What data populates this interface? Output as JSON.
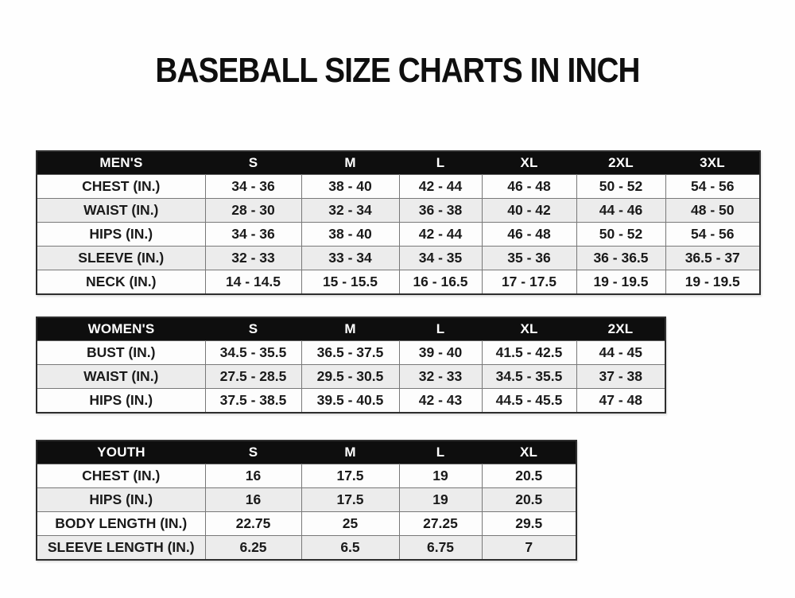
{
  "page": {
    "title": "BASEBALL SIZE CHARTS IN INCH"
  },
  "colors": {
    "header_bg": "#0e0e0e",
    "header_text": "#ffffff",
    "row_bg": "#fdfdfd",
    "row_alt_bg": "#ececec",
    "grid_line": "#787878",
    "outer_border": "#2e2e2e",
    "text": "#1a1a1a",
    "background": "#fefefe"
  },
  "chart_data": [
    {
      "type": "table",
      "title": "MEN'S",
      "columns": [
        "S",
        "M",
        "L",
        "XL",
        "2XL",
        "3XL"
      ],
      "rows": [
        {
          "label": "CHEST (IN.)",
          "values": [
            "34 - 36",
            "38 - 40",
            "42 - 44",
            "46 - 48",
            "50 - 52",
            "54 - 56"
          ]
        },
        {
          "label": "WAIST (IN.)",
          "values": [
            "28 - 30",
            "32 - 34",
            "36 - 38",
            "40 - 42",
            "44 - 46",
            "48 - 50"
          ]
        },
        {
          "label": "HIPS (IN.)",
          "values": [
            "34 - 36",
            "38 - 40",
            "42 - 44",
            "46 - 48",
            "50 - 52",
            "54 - 56"
          ]
        },
        {
          "label": "SLEEVE (IN.)",
          "values": [
            "32 - 33",
            "33 - 34",
            "34 - 35",
            "35 - 36",
            "36 - 36.5",
            "36.5 - 37"
          ]
        },
        {
          "label": "NECK (IN.)",
          "values": [
            "14 - 14.5",
            "15 - 15.5",
            "16 - 16.5",
            "17 - 17.5",
            "19 - 19.5",
            "19 - 19.5"
          ]
        }
      ]
    },
    {
      "type": "table",
      "title": "WOMEN'S",
      "columns": [
        "S",
        "M",
        "L",
        "XL",
        "2XL"
      ],
      "rows": [
        {
          "label": "BUST (IN.)",
          "values": [
            "34.5 - 35.5",
            "36.5 - 37.5",
            "39 - 40",
            "41.5 - 42.5",
            "44 - 45"
          ]
        },
        {
          "label": "WAIST (IN.)",
          "values": [
            "27.5 - 28.5",
            "29.5 - 30.5",
            "32 - 33",
            "34.5 - 35.5",
            "37 - 38"
          ]
        },
        {
          "label": "HIPS (IN.)",
          "values": [
            "37.5 - 38.5",
            "39.5 - 40.5",
            "42 - 43",
            "44.5 - 45.5",
            "47 - 48"
          ]
        }
      ]
    },
    {
      "type": "table",
      "title": "YOUTH",
      "columns": [
        "S",
        "M",
        "L",
        "XL"
      ],
      "rows": [
        {
          "label": "CHEST (IN.)",
          "values": [
            "16",
            "17.5",
            "19",
            "20.5"
          ]
        },
        {
          "label": "HIPS (IN.)",
          "values": [
            "16",
            "17.5",
            "19",
            "20.5"
          ]
        },
        {
          "label": "BODY LENGTH (IN.)",
          "values": [
            "22.75",
            "25",
            "27.25",
            "29.5"
          ]
        },
        {
          "label": "SLEEVE LENGTH (IN.)",
          "values": [
            "6.25",
            "6.5",
            "6.75",
            "7"
          ]
        }
      ]
    }
  ]
}
